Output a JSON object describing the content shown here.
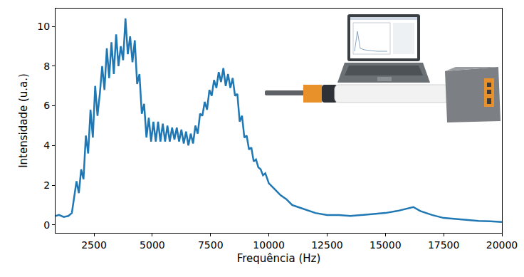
{
  "chart_data": {
    "type": "line",
    "x_label": "Frequência (Hz)",
    "y_label": "Intensidade (u.a.)",
    "color": "#1f77b4",
    "grid": false,
    "xlim": [
      850,
      20000
    ],
    "ylim": [
      -0.4,
      10.9
    ],
    "xticks": [
      2500,
      5000,
      7500,
      10000,
      12500,
      15000,
      17500,
      20000
    ],
    "yticks": [
      0,
      2,
      4,
      6,
      8,
      10
    ],
    "x": [
      850,
      1000,
      1200,
      1400,
      1550,
      1650,
      1750,
      1850,
      1950,
      2050,
      2150,
      2250,
      2350,
      2450,
      2550,
      2650,
      2750,
      2850,
      2950,
      3050,
      3150,
      3250,
      3350,
      3450,
      3550,
      3650,
      3750,
      3850,
      3950,
      4050,
      4150,
      4250,
      4350,
      4450,
      4550,
      4650,
      4750,
      4850,
      4950,
      5050,
      5150,
      5250,
      5350,
      5450,
      5550,
      5650,
      5750,
      5850,
      5950,
      6050,
      6150,
      6250,
      6350,
      6450,
      6550,
      6650,
      6750,
      6850,
      6950,
      7050,
      7150,
      7250,
      7350,
      7450,
      7550,
      7650,
      7750,
      7850,
      7950,
      8050,
      8150,
      8250,
      8350,
      8450,
      8550,
      8650,
      8750,
      8850,
      8950,
      9050,
      9150,
      9250,
      9350,
      9450,
      9550,
      9650,
      9750,
      9850,
      10000,
      10250,
      10500,
      10750,
      11000,
      11250,
      11500,
      12000,
      12500,
      13000,
      13500,
      14000,
      14500,
      15000,
      15500,
      16000,
      16200,
      16500,
      17000,
      17500,
      18000,
      18500,
      19000,
      19500,
      20000
    ],
    "values": [
      0.45,
      0.5,
      0.4,
      0.45,
      0.6,
      1.5,
      2.2,
      1.6,
      2.8,
      2.3,
      4.5,
      3.6,
      5.8,
      4.4,
      7.0,
      5.5,
      6.6,
      8.0,
      6.8,
      8.9,
      7.4,
      9.2,
      7.6,
      9.6,
      8.0,
      9.0,
      8.3,
      10.4,
      8.6,
      9.5,
      8.2,
      9.3,
      7.1,
      7.6,
      5.6,
      6.1,
      4.4,
      5.4,
      4.2,
      5.2,
      4.2,
      5.2,
      4.2,
      5.1,
      4.2,
      5.0,
      4.2,
      4.9,
      4.3,
      4.9,
      4.2,
      4.8,
      4.1,
      4.7,
      4.0,
      4.6,
      4.1,
      5.0,
      4.6,
      5.6,
      5.5,
      6.2,
      5.8,
      6.8,
      6.5,
      7.3,
      6.9,
      7.7,
      7.2,
      7.9,
      7.0,
      7.6,
      6.9,
      7.4,
      6.5,
      6.6,
      5.2,
      5.5,
      4.4,
      4.5,
      3.8,
      3.9,
      3.2,
      3.3,
      2.9,
      2.8,
      2.5,
      2.6,
      2.1,
      1.8,
      1.5,
      1.3,
      1.0,
      0.9,
      0.8,
      0.6,
      0.5,
      0.5,
      0.45,
      0.5,
      0.55,
      0.6,
      0.7,
      0.85,
      0.9,
      0.7,
      0.5,
      0.35,
      0.3,
      0.25,
      0.2,
      0.18,
      0.15
    ]
  }
}
